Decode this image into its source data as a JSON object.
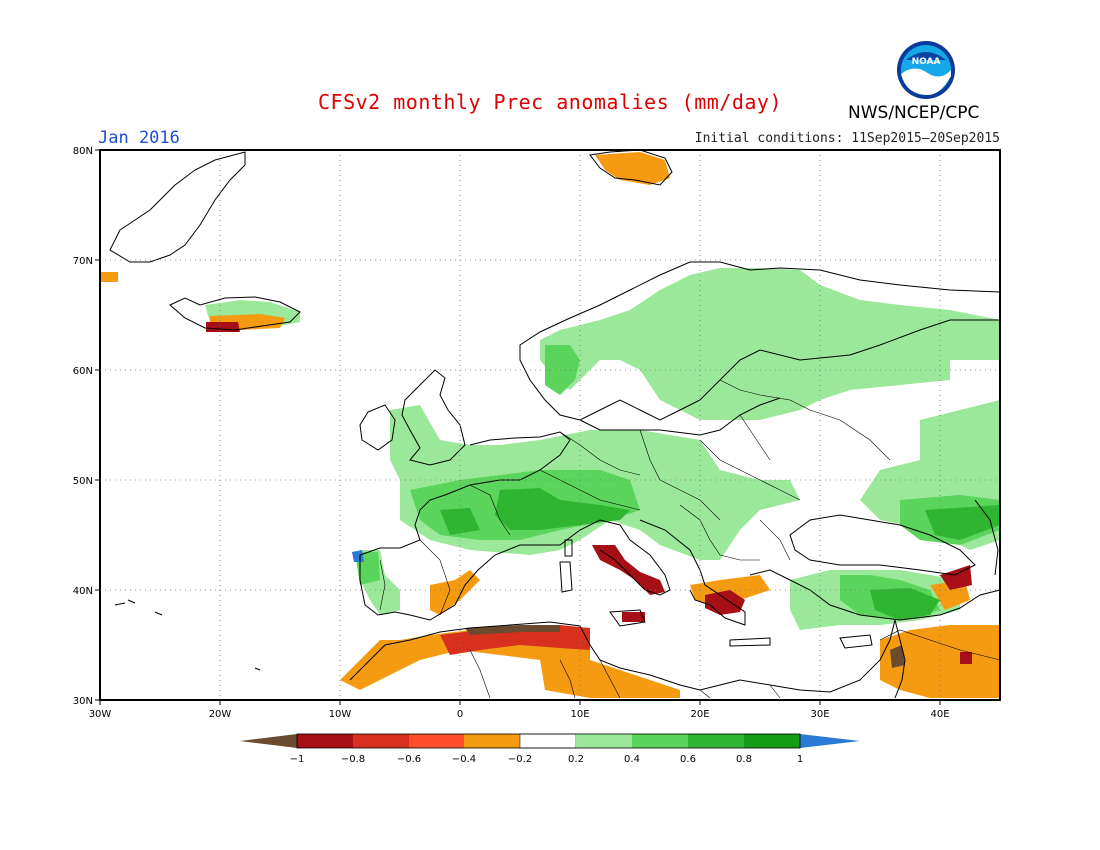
{
  "header": {
    "title": "CFSv2 monthly Prec anomalies (mm/day)",
    "month": "Jan 2016",
    "initial_conditions": "Initial conditions: 11Sep2015–20Sep2015",
    "org": "NWS/NCEP/CPC",
    "logo_text": "NOAA"
  },
  "map": {
    "lon_range": [
      -30,
      45
    ],
    "lat_range": [
      30,
      80
    ],
    "lat_labels": [
      "30N",
      "40N",
      "50N",
      "60N",
      "70N",
      "80N"
    ],
    "lon_labels": [
      "30W",
      "20W",
      "10W",
      "0",
      "10E",
      "20E",
      "30E",
      "40E"
    ],
    "grid": true
  },
  "colorbar": {
    "labels": [
      "−1",
      "−0.8",
      "−0.6",
      "−0.4",
      "−0.2",
      "0.2",
      "0.4",
      "0.6",
      "0.8",
      "1"
    ],
    "colors": [
      "#6b4a2f",
      "#a50f15",
      "#d7301f",
      "#fc4e2a",
      "#f59b12",
      "#ffffff",
      "#9be89b",
      "#5ad45a",
      "#2fb52f",
      "#159c15",
      "#2a7ad6"
    ]
  },
  "colors": {
    "title": "#e00000",
    "month": "#1f4fd8",
    "land_outline": "#000000",
    "light_green": "#9be89b",
    "medium_green": "#5ad45a",
    "dark_green": "#2fb52f",
    "orange": "#f59b12",
    "red_orange": "#fc4e2a",
    "dark_red": "#a50f15",
    "brown": "#6b4a2f",
    "blue": "#2a7ad6"
  }
}
